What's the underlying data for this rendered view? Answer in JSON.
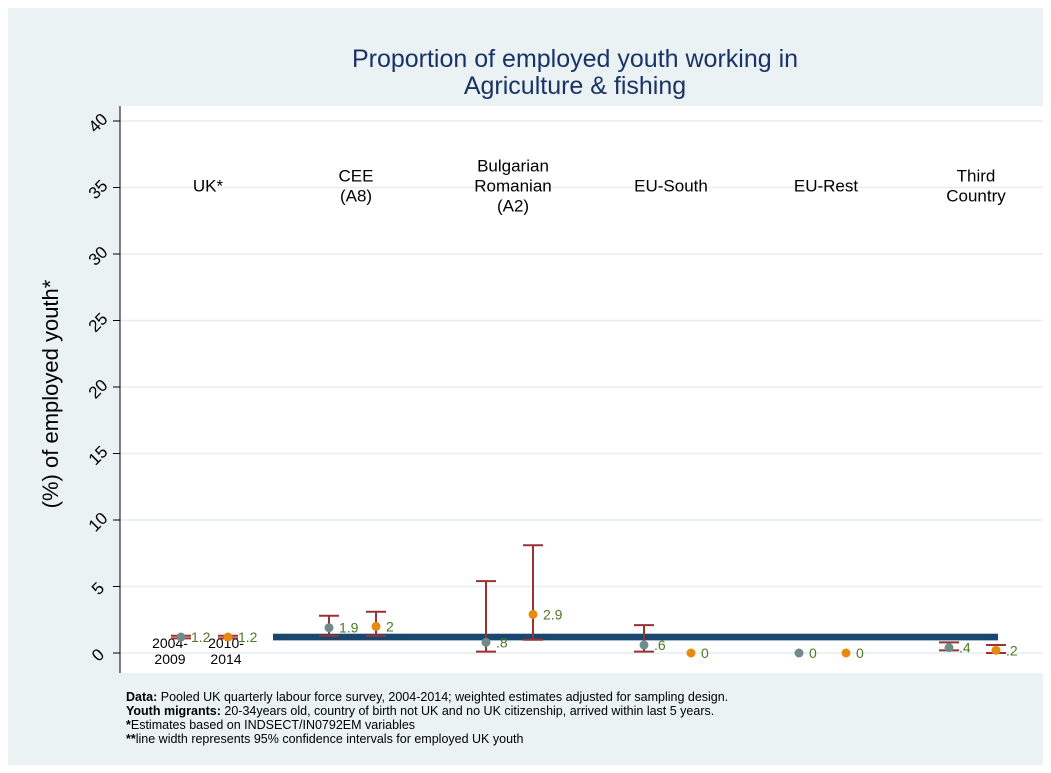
{
  "chart_data": {
    "type": "scatter",
    "title_lines": [
      "Proportion of employed youth working in",
      "Agriculture & fishing"
    ],
    "ylabel": "(%) of employed youth*",
    "ylim": [
      0,
      40
    ],
    "yticks": [
      0,
      5,
      10,
      15,
      20,
      25,
      30,
      35,
      40
    ],
    "grid": true,
    "colors": {
      "background": "#eaf2f3",
      "plot_background": "#ffffff",
      "gridline": "#e6eef0",
      "period1_point": "#708c8a",
      "period2_point": "#e88a10",
      "error_bar": "#993333",
      "value_label": "#4a7a25",
      "uk_band": "#1a476f",
      "title": "#1a3366"
    },
    "group_labels": [
      [
        "UK*"
      ],
      [
        "CEE",
        "(A8)"
      ],
      [
        "Bulgarian",
        "Romanian",
        "(A2)"
      ],
      [
        "EU-South"
      ],
      [
        "EU-Rest"
      ],
      [
        "Third",
        "Country"
      ]
    ],
    "period_labels": [
      [
        "2004-",
        "2009"
      ],
      [
        "2010-",
        "2014"
      ]
    ],
    "uk_band": {
      "low": 1.1,
      "high": 1.3
    },
    "points": [
      {
        "group": "UK*",
        "period": "2004-2009",
        "value": 1.2,
        "label": "1.2",
        "ci": [
          1.1,
          1.3
        ]
      },
      {
        "group": "UK*",
        "period": "2010-2014",
        "value": 1.2,
        "label": "1.2",
        "ci": [
          1.1,
          1.3
        ]
      },
      {
        "group": "CEE (A8)",
        "period": "2004-2009",
        "value": 1.9,
        "label": "1.9",
        "ci": [
          1.3,
          2.8
        ]
      },
      {
        "group": "CEE (A8)",
        "period": "2010-2014",
        "value": 2.0,
        "label": "2",
        "ci": [
          1.3,
          3.1
        ]
      },
      {
        "group": "Bulgarian Romanian (A2)",
        "period": "2004-2009",
        "value": 0.8,
        "label": ".8",
        "ci": [
          0.1,
          5.4
        ]
      },
      {
        "group": "Bulgarian Romanian (A2)",
        "period": "2010-2014",
        "value": 2.9,
        "label": "2.9",
        "ci": [
          1.0,
          8.1
        ]
      },
      {
        "group": "EU-South",
        "period": "2004-2009",
        "value": 0.6,
        "label": ".6",
        "ci": [
          0.1,
          2.1
        ]
      },
      {
        "group": "EU-South",
        "period": "2010-2014",
        "value": 0,
        "label": "0",
        "ci": null
      },
      {
        "group": "EU-Rest",
        "period": "2004-2009",
        "value": 0,
        "label": "0",
        "ci": null
      },
      {
        "group": "EU-Rest",
        "period": "2010-2014",
        "value": 0,
        "label": "0",
        "ci": null
      },
      {
        "group": "Third Country",
        "period": "2004-2009",
        "value": 0.4,
        "label": ".4",
        "ci": [
          0.2,
          0.8
        ]
      },
      {
        "group": "Third Country",
        "period": "2010-2014",
        "value": 0.2,
        "label": ".2",
        "ci": [
          0.0,
          0.6
        ]
      }
    ]
  },
  "notes": [
    {
      "bold": "Data:",
      "text": " Pooled UK quarterly labour force survey, 2004-2014; weighted estimates adjusted for sampling design."
    },
    {
      "bold": "Youth migrants:",
      "text": " 20-34years old, country of birth not UK and no UK citizenship, arrived within last 5 years."
    },
    {
      "bold": "*",
      "text": "Estimates based on INDSECT/IN0792EM variables"
    },
    {
      "bold": "**",
      "text": "line width represents 95% confidence intervals for employed UK youth"
    }
  ]
}
